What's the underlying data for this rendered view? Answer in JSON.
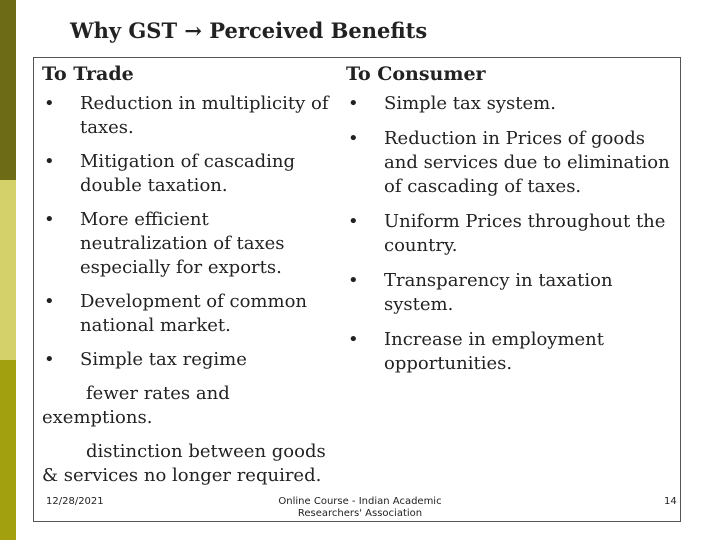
{
  "title": "Why GST → Perceived Benefits",
  "trade": {
    "heading": "To Trade",
    "items": [
      "Reduction in multiplicity of taxes.",
      "Mitigation of cascading double taxation.",
      "More efficient neutralization of taxes especially for exports.",
      "Development of common national market.",
      "Simple tax regime"
    ],
    "sub1": "fewer rates and exemptions.",
    "sub2": "distinction between goods & services no longer required."
  },
  "consumer": {
    "heading": "To Consumer",
    "items": [
      "Simple tax system.",
      "Reduction in Prices of goods and services due to elimination of cascading of taxes.",
      "Uniform Prices throughout the country.",
      "Transparency in taxation system.",
      "Increase in employment opportunities."
    ]
  },
  "footer": {
    "date": "12/28/2021",
    "center": "Online Course - Indian Academic Researchers' Association",
    "page": "14"
  }
}
